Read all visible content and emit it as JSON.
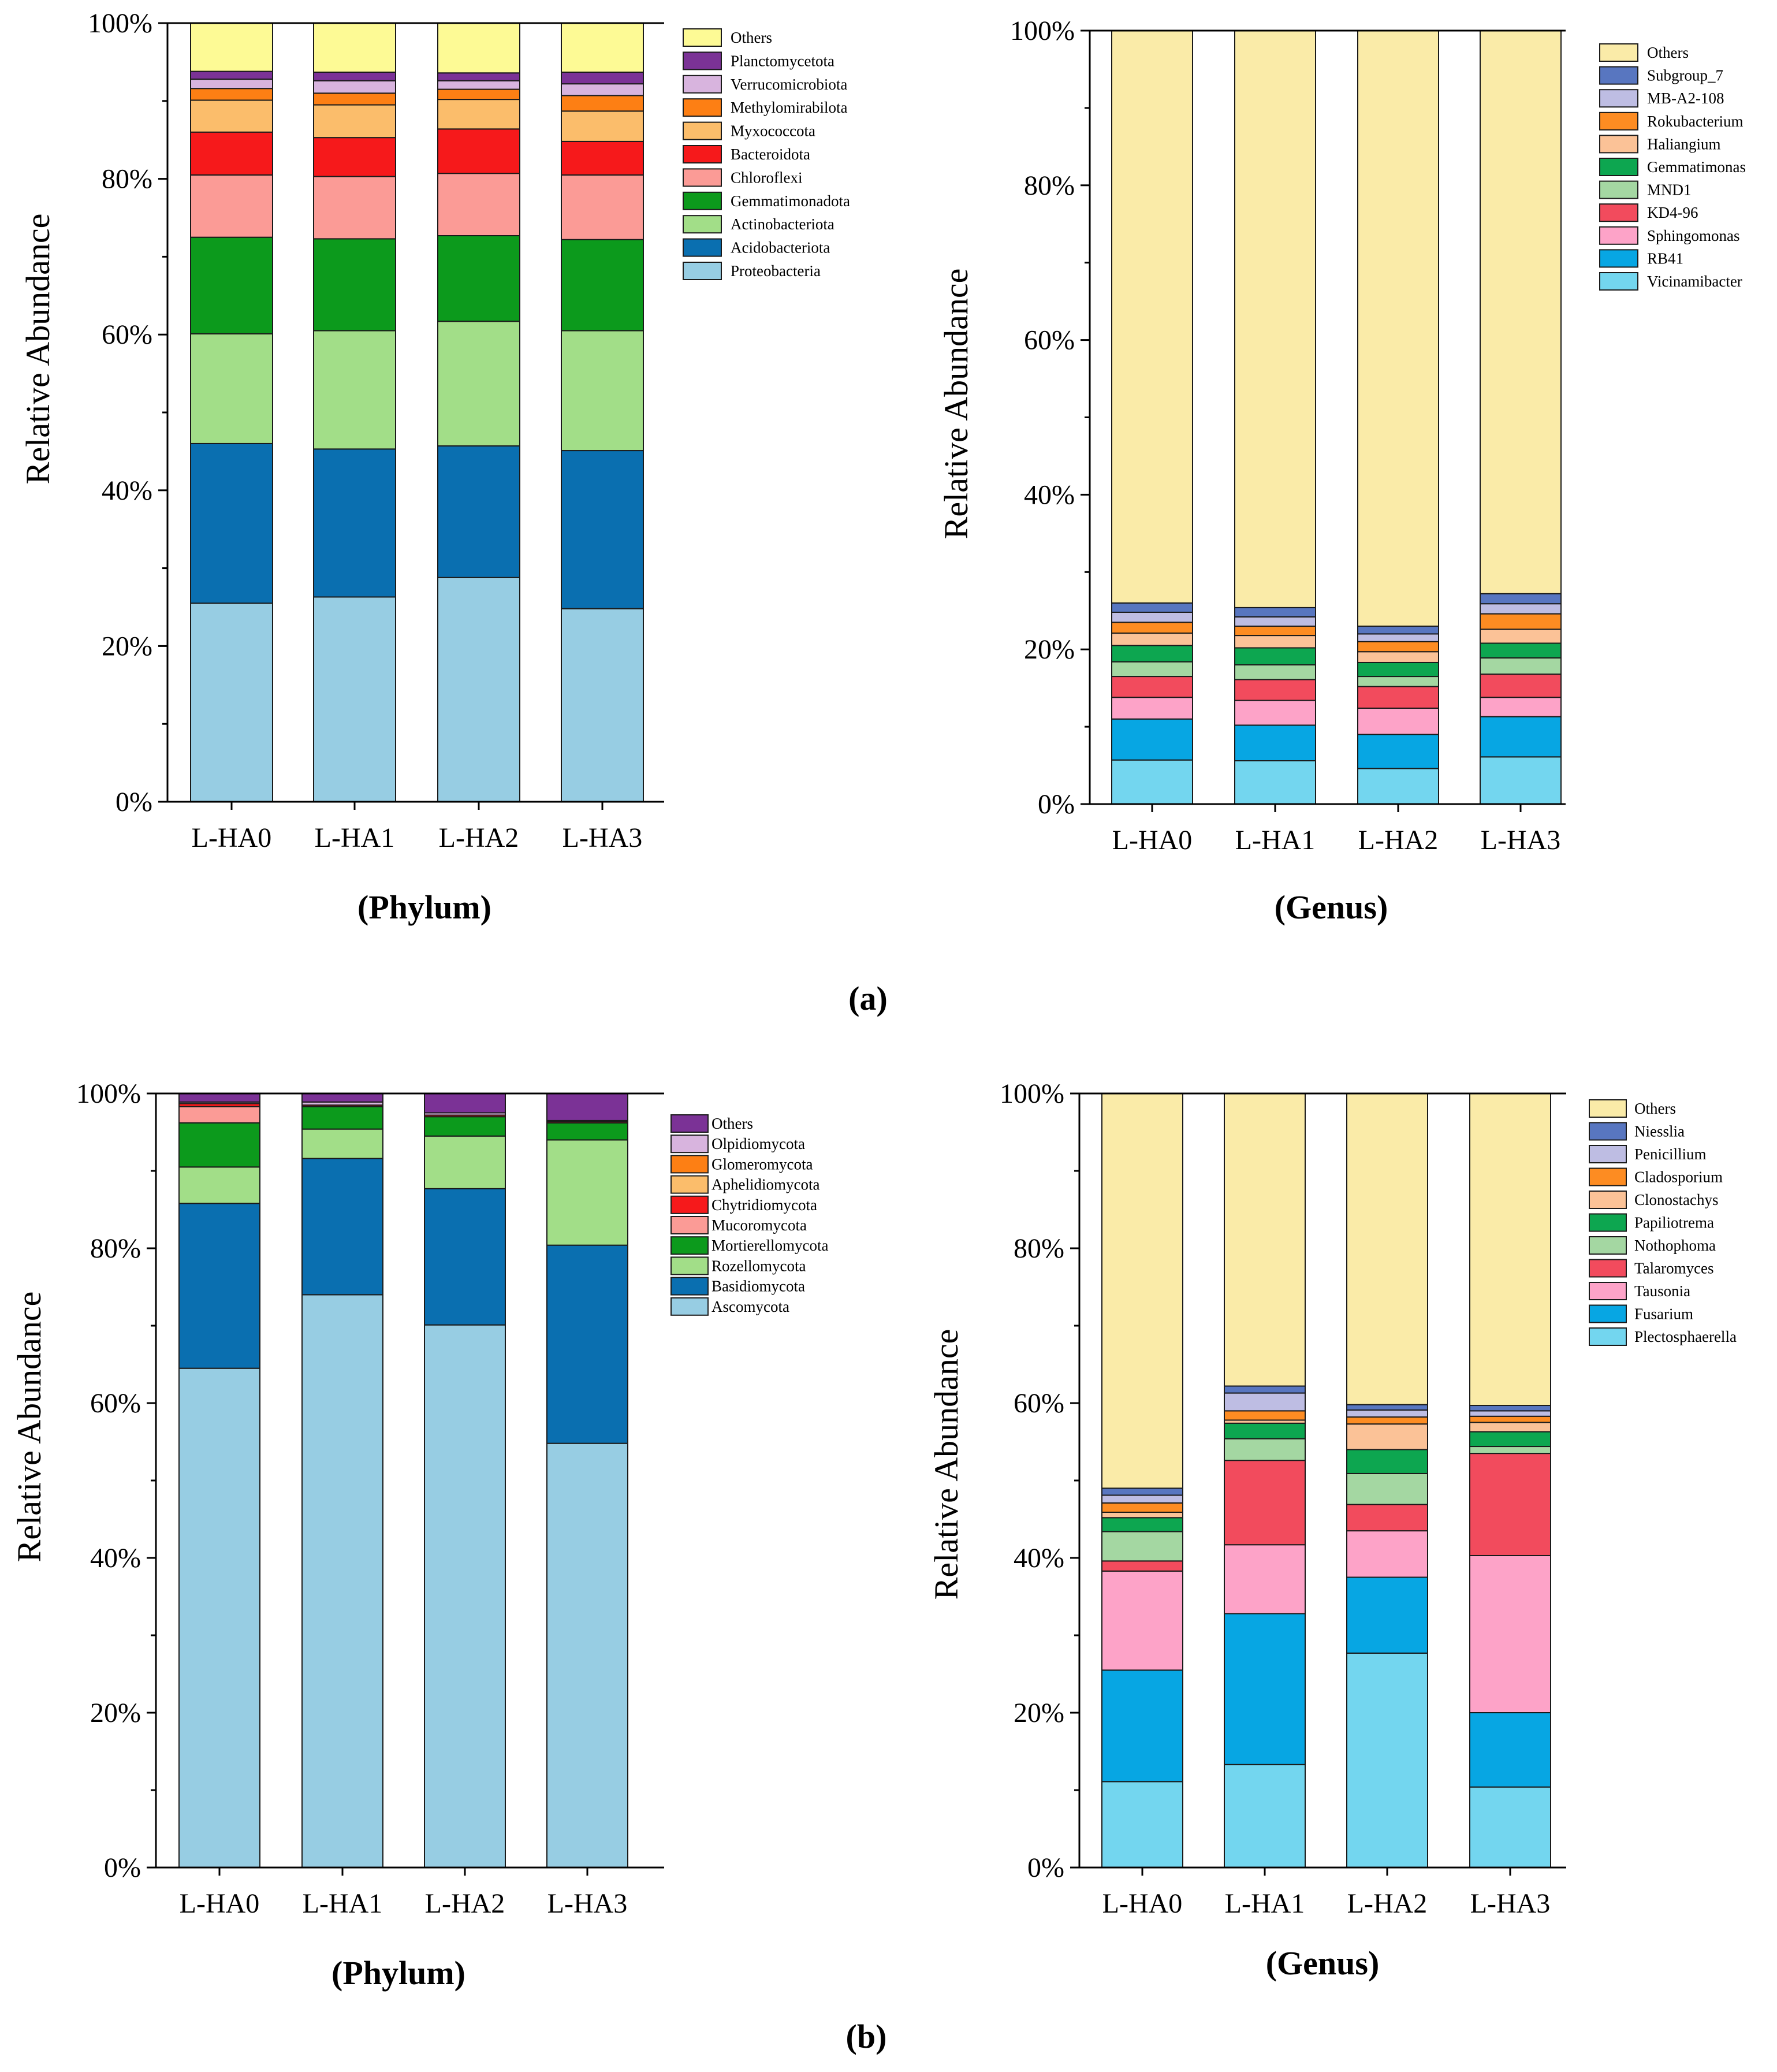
{
  "panels": [
    {
      "label": "(a)"
    },
    {
      "label": "(b)"
    }
  ],
  "chart_data": [
    {
      "type": "bar",
      "stacked": true,
      "panel": "(a)",
      "xlabel": "(Phylum)",
      "ylabel": "Relative Abundance",
      "ylim": [
        0,
        100
      ],
      "yticks": [
        "0%",
        "20%",
        "40%",
        "60%",
        "80%",
        "100%"
      ],
      "categories": [
        "L-HA0",
        "L-HA1",
        "L-HA2",
        "L-HA3"
      ],
      "series": [
        {
          "name": "Proteobacteria",
          "color": "#97cde3",
          "values": [
            25.5,
            26.3,
            28.8,
            24.8
          ]
        },
        {
          "name": "Acidobacteriota",
          "color": "#0a6fb0",
          "values": [
            20.5,
            19.0,
            16.9,
            20.3
          ]
        },
        {
          "name": "Actinobacteriota",
          "color": "#a2de88",
          "values": [
            14.1,
            15.2,
            16.0,
            15.4
          ]
        },
        {
          "name": "Gemmatimonadota",
          "color": "#0c9a1c",
          "values": [
            12.4,
            11.8,
            11.0,
            11.7
          ]
        },
        {
          "name": "Chloroflexi",
          "color": "#fb9b96",
          "values": [
            8.0,
            8.0,
            8.0,
            8.3
          ]
        },
        {
          "name": "Bacteroidota",
          "color": "#f6191b",
          "values": [
            5.5,
            5.0,
            5.7,
            4.3
          ]
        },
        {
          "name": "Myxococcota",
          "color": "#fbbd6b",
          "values": [
            4.1,
            4.2,
            3.8,
            3.9
          ]
        },
        {
          "name": "Methylomirabilota",
          "color": "#fd7f14",
          "values": [
            1.5,
            1.5,
            1.3,
            2.0
          ]
        },
        {
          "name": "Verrucomicrobiota",
          "color": "#d8b4de",
          "values": [
            1.2,
            1.6,
            1.1,
            1.5
          ]
        },
        {
          "name": "Planctomycetota",
          "color": "#7b3296",
          "values": [
            1.0,
            1.1,
            1.0,
            1.5
          ]
        },
        {
          "name": "Others",
          "color": "#fdfa95",
          "values": [
            6.2,
            6.3,
            6.4,
            6.3
          ]
        }
      ]
    },
    {
      "type": "bar",
      "stacked": true,
      "panel": "(a)",
      "xlabel": "(Genus)",
      "ylabel": "Relative Abundance",
      "ylim": [
        0,
        100
      ],
      "yticks": [
        "0%",
        "20%",
        "40%",
        "60%",
        "80%",
        "100%"
      ],
      "categories": [
        "L-HA0",
        "L-HA1",
        "L-HA2",
        "L-HA3"
      ],
      "series": [
        {
          "name": "Vicinamibacter",
          "color": "#73d6ef",
          "values": [
            5.7,
            5.6,
            4.6,
            6.1
          ]
        },
        {
          "name": "RB41",
          "color": "#07a6e3",
          "values": [
            5.3,
            4.6,
            4.4,
            5.2
          ]
        },
        {
          "name": "Sphingomonas",
          "color": "#fda3c8",
          "values": [
            2.8,
            3.2,
            3.4,
            2.5
          ]
        },
        {
          "name": "KD4-96",
          "color": "#f24b5d",
          "values": [
            2.7,
            2.7,
            2.8,
            3.0
          ]
        },
        {
          "name": "MND1",
          "color": "#a4d7a2",
          "values": [
            1.9,
            1.9,
            1.3,
            2.1
          ]
        },
        {
          "name": "Gemmatimonas",
          "color": "#0da650",
          "values": [
            2.1,
            2.2,
            1.8,
            1.9
          ]
        },
        {
          "name": "Haliangium",
          "color": "#fbc297",
          "values": [
            1.6,
            1.6,
            1.4,
            1.8
          ]
        },
        {
          "name": "Rokubacterium",
          "color": "#fd8c22",
          "values": [
            1.4,
            1.2,
            1.3,
            2.0
          ]
        },
        {
          "name": "MB-A2-108",
          "color": "#bebde3",
          "values": [
            1.3,
            1.2,
            1.0,
            1.3
          ]
        },
        {
          "name": "Subgroup_7",
          "color": "#5876c0",
          "values": [
            1.2,
            1.2,
            1.0,
            1.3
          ]
        },
        {
          "name": "Others",
          "color": "#faeba8",
          "values": [
            74.0,
            74.6,
            77.0,
            72.8
          ]
        }
      ]
    },
    {
      "type": "bar",
      "stacked": true,
      "panel": "(b)",
      "xlabel": "(Phylum)",
      "ylabel": "Relative Abundance",
      "ylim": [
        0,
        100
      ],
      "yticks": [
        "0%",
        "20%",
        "40%",
        "60%",
        "80%",
        "100%"
      ],
      "categories": [
        "L-HA0",
        "L-HA1",
        "L-HA2",
        "L-HA3"
      ],
      "series": [
        {
          "name": "Ascomycota",
          "color": "#97cde3",
          "values": [
            64.5,
            74.0,
            70.1,
            54.8
          ]
        },
        {
          "name": "Basidiomycota",
          "color": "#0a6fb0",
          "values": [
            21.3,
            17.6,
            17.6,
            25.6
          ]
        },
        {
          "name": "Rozellomycota",
          "color": "#a2de88",
          "values": [
            4.7,
            3.8,
            6.8,
            13.6
          ]
        },
        {
          "name": "Mortierellomycota",
          "color": "#0c9a1c",
          "values": [
            5.7,
            2.9,
            2.5,
            2.2
          ]
        },
        {
          "name": "Mucoromycota",
          "color": "#fb9b96",
          "values": [
            2.1,
            0.0,
            0.0,
            0.0
          ]
        },
        {
          "name": "Chytridiomycota",
          "color": "#f6191b",
          "values": [
            0.4,
            0.2,
            0.2,
            0.2
          ]
        },
        {
          "name": "Aphelidiomycota",
          "color": "#fbbd6b",
          "values": [
            0.0,
            0.0,
            0.0,
            0.0
          ]
        },
        {
          "name": "Glomeromycota",
          "color": "#fd7f14",
          "values": [
            0.0,
            0.0,
            0.0,
            0.0
          ]
        },
        {
          "name": "Olpidiomycota",
          "color": "#d8b4de",
          "values": [
            0.2,
            0.4,
            0.3,
            0.1
          ]
        },
        {
          "name": "Others",
          "color": "#7b3296",
          "values": [
            1.1,
            1.1,
            2.5,
            3.5
          ]
        }
      ]
    },
    {
      "type": "bar",
      "stacked": true,
      "panel": "(b)",
      "xlabel": "(Genus)",
      "ylabel": "Relative Abundance",
      "ylim": [
        0,
        100
      ],
      "yticks": [
        "0%",
        "20%",
        "40%",
        "60%",
        "80%",
        "100%"
      ],
      "categories": [
        "L-HA0",
        "L-HA1",
        "L-HA2",
        "L-HA3"
      ],
      "series": [
        {
          "name": "Plectosphaerella",
          "color": "#73d6ef",
          "values": [
            11.1,
            13.3,
            27.7,
            10.4
          ]
        },
        {
          "name": "Fusarium",
          "color": "#07a6e3",
          "values": [
            14.4,
            19.5,
            9.8,
            9.6
          ]
        },
        {
          "name": "Tausonia",
          "color": "#fda3c8",
          "values": [
            12.8,
            8.9,
            6.0,
            20.3
          ]
        },
        {
          "name": "Talaromyces",
          "color": "#f24b5d",
          "values": [
            1.3,
            10.9,
            3.4,
            13.2
          ]
        },
        {
          "name": "Nothophoma",
          "color": "#a4d7a2",
          "values": [
            3.8,
            2.8,
            4.0,
            0.9
          ]
        },
        {
          "name": "Papiliotrema",
          "color": "#0da650",
          "values": [
            1.8,
            2.0,
            3.1,
            1.9
          ]
        },
        {
          "name": "Clonostachys",
          "color": "#fbc297",
          "values": [
            0.7,
            0.4,
            3.3,
            1.2
          ]
        },
        {
          "name": "Cladosporium",
          "color": "#fd8c22",
          "values": [
            1.2,
            1.2,
            0.9,
            0.8
          ]
        },
        {
          "name": "Penicillium",
          "color": "#bebde3",
          "values": [
            1.0,
            2.3,
            0.9,
            0.7
          ]
        },
        {
          "name": "Niesslia",
          "color": "#5876c0",
          "values": [
            0.9,
            0.9,
            0.7,
            0.7
          ]
        },
        {
          "name": "Others",
          "color": "#faeba8",
          "values": [
            51.0,
            37.8,
            40.2,
            40.3
          ]
        }
      ]
    }
  ]
}
